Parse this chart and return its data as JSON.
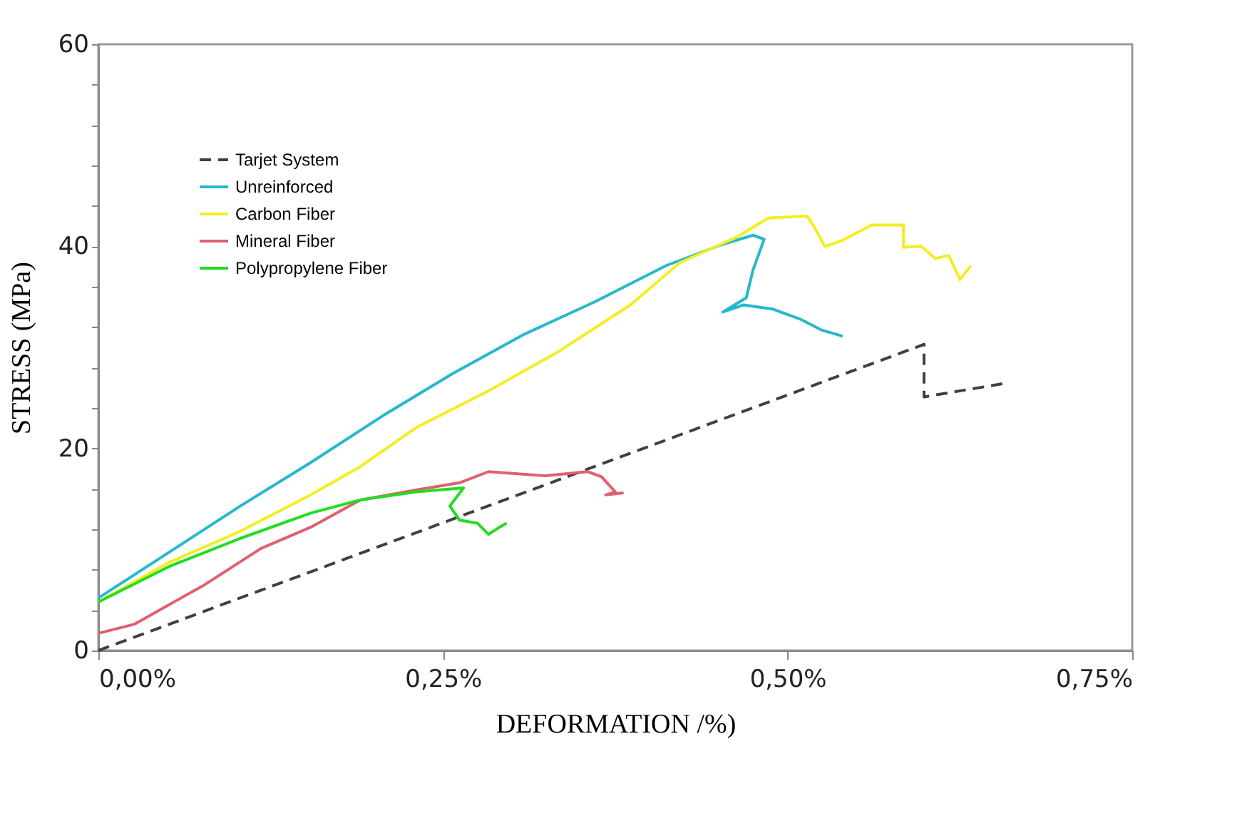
{
  "chart_data": {
    "type": "line",
    "xlabel": "DEFORMATION /%)",
    "ylabel": "STRESS (MPa)",
    "xlim": [
      0,
      0.75
    ],
    "ylim": [
      0,
      60
    ],
    "xticks": [
      {
        "value": 0,
        "label": "0,00%"
      },
      {
        "value": 0.25,
        "label": "0,25%"
      },
      {
        "value": 0.5,
        "label": "0,50%"
      },
      {
        "value": 0.75,
        "label": "0,75%"
      }
    ],
    "yticks": [
      0,
      {
        "value": 4,
        "label": null
      },
      {
        "value": 8,
        "label": null
      },
      {
        "value": 12,
        "label": null
      },
      {
        "value": 16,
        "label": null
      },
      20,
      {
        "value": 24,
        "label": null
      },
      {
        "value": 28,
        "label": null
      },
      {
        "value": 32,
        "label": null
      },
      {
        "value": 36,
        "label": null
      },
      40,
      {
        "value": 44,
        "label": null
      },
      {
        "value": 48,
        "label": null
      },
      {
        "value": 52,
        "label": null
      },
      {
        "value": 56,
        "label": null
      },
      60
    ],
    "grid": false,
    "legend": "top left",
    "marker": "none",
    "series": [
      {
        "name": "Tarjet System",
        "color": "#404040",
        "line_style": "dashed",
        "x": [
          0,
          0.599,
          0.599,
          0.656
        ],
        "values": [
          0,
          30.3,
          25.1,
          26.4
        ]
      },
      {
        "name": "Unreinforced",
        "color": "#26b8cc",
        "line_style": "solid",
        "x": [
          0,
          0.051,
          0.103,
          0.154,
          0.206,
          0.257,
          0.309,
          0.36,
          0.412,
          0.453,
          0.475,
          0.483,
          0.475,
          0.47,
          0.453,
          0.468,
          0.489,
          0.509,
          0.525,
          0.54
        ],
        "values": [
          5.2,
          9.7,
          14.3,
          18.6,
          23.2,
          27.4,
          31.3,
          34.5,
          38.1,
          40.2,
          41.1,
          40.7,
          37.7,
          34.9,
          33.5,
          34.2,
          33.8,
          32.8,
          31.7,
          31.1
        ]
      },
      {
        "name": "Carbon Fiber",
        "color": "#f2ee22",
        "line_style": "solid",
        "x": [
          0,
          0.051,
          0.103,
          0.154,
          0.19,
          0.231,
          0.283,
          0.334,
          0.386,
          0.422,
          0.463,
          0.486,
          0.514,
          0.519,
          0.527,
          0.54,
          0.561,
          0.584,
          0.584,
          0.597,
          0.607,
          0.617,
          0.625,
          0.633
        ],
        "values": [
          4.8,
          8.7,
          11.8,
          15.4,
          18.2,
          22.1,
          25.7,
          29.6,
          34.2,
          38.4,
          40.9,
          42.8,
          43.0,
          42.0,
          40.0,
          40.6,
          42.1,
          42.1,
          39.9,
          40.0,
          38.8,
          39.1,
          36.7,
          38.1
        ]
      },
      {
        "name": "Mineral Fiber",
        "color": "#e06070",
        "line_style": "solid",
        "x": [
          0,
          0.026,
          0.077,
          0.118,
          0.154,
          0.19,
          0.231,
          0.262,
          0.283,
          0.324,
          0.355,
          0.365,
          0.375,
          0.368,
          0.381
        ],
        "values": [
          1.7,
          2.6,
          6.5,
          10.1,
          12.2,
          14.9,
          15.9,
          16.6,
          17.7,
          17.3,
          17.7,
          17.2,
          15.7,
          15.4,
          15.6
        ]
      },
      {
        "name": "Polypropylene Fiber",
        "color": "#22dd22",
        "line_style": "solid",
        "x": [
          0,
          0.051,
          0.103,
          0.154,
          0.19,
          0.231,
          0.265,
          0.255,
          0.262,
          0.275,
          0.283,
          0.291,
          0.296
        ],
        "values": [
          4.8,
          8.3,
          11.1,
          13.6,
          14.9,
          15.7,
          16.1,
          14.3,
          12.9,
          12.6,
          11.5,
          12.2,
          12.6
        ]
      }
    ]
  }
}
